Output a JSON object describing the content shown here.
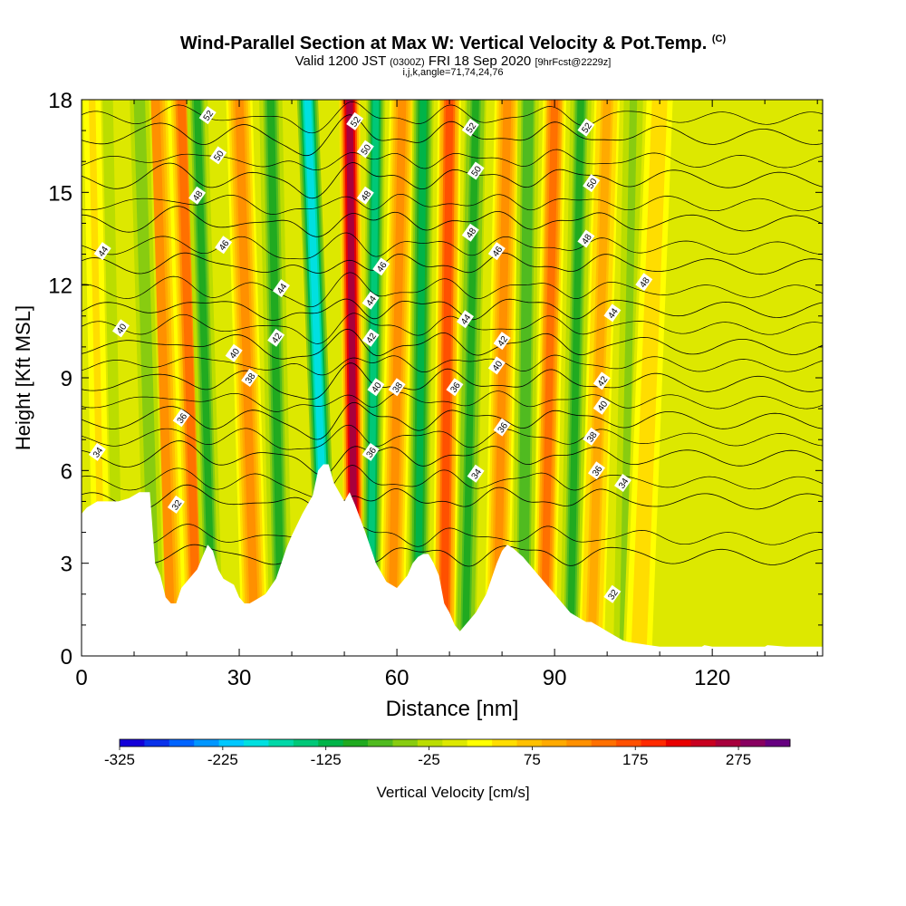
{
  "title": {
    "line1": "Wind-Parallel Section at Max W: Vertical Velocity & Pot.Temp.",
    "line1_mark": "(C)",
    "line2_valid": "Valid 1200 JST",
    "line2_utc": "(0300Z)",
    "line2_date": "FRI 18 Sep 2020",
    "line2_fcst": "[9hrFcst@2229z]",
    "line3": "i,j,k,angle=71,74,24,76"
  },
  "chart_data": {
    "type": "heatmap",
    "xlabel": "Distance [nm]",
    "ylabel": "Height [Kft MSL]",
    "xlim": [
      0,
      141
    ],
    "ylim": [
      0,
      18
    ],
    "x_ticks": [
      0,
      30,
      60,
      90,
      120
    ],
    "y_ticks": [
      0,
      3,
      6,
      9,
      12,
      15,
      18
    ],
    "colorbar": {
      "label": "Vertical Velocity [cm/s]",
      "range": [
        -325,
        325
      ],
      "tick_values": [
        -325,
        -225,
        -125,
        -25,
        75,
        175,
        275
      ],
      "tick_labels": [
        "-325",
        "-225",
        "-125",
        "-25",
        "75",
        "175",
        "275"
      ],
      "colors": [
        "#1400d8",
        "#0a32ea",
        "#0064ff",
        "#0096ff",
        "#00c8ff",
        "#00e0e0",
        "#00d8a8",
        "#00c878",
        "#00b448",
        "#20aa20",
        "#50bb20",
        "#88cc10",
        "#bbdd00",
        "#dde800",
        "#ffff00",
        "#ffdd00",
        "#ffc000",
        "#ffaa00",
        "#ff9000",
        "#ff7000",
        "#ff5000",
        "#ff2a00",
        "#e80000",
        "#c80020",
        "#a8003c",
        "#880060",
        "#660080"
      ]
    },
    "terrain": {
      "x": [
        0,
        1,
        3,
        4,
        7,
        9,
        11,
        13,
        14,
        15,
        16,
        17,
        18,
        19,
        20,
        21,
        22,
        23,
        24,
        25,
        26,
        27,
        28,
        29,
        30,
        31,
        32,
        33,
        35,
        37,
        38,
        39,
        40,
        42,
        44,
        45,
        46,
        47,
        48,
        49,
        50,
        51,
        52,
        54,
        56,
        58,
        60,
        61,
        62,
        63,
        64,
        65,
        66,
        67,
        68,
        69,
        70,
        71,
        72,
        73,
        75,
        77,
        78,
        79,
        80,
        81,
        82,
        84,
        86,
        88,
        90,
        91,
        92,
        93,
        94,
        95,
        96,
        97,
        98,
        99,
        100,
        101,
        102,
        103,
        104,
        106,
        108,
        110,
        112,
        114,
        116,
        118,
        118.5,
        120,
        125,
        128,
        130,
        130.5,
        134,
        137,
        139,
        141
      ],
      "y": [
        4.6,
        4.8,
        5.0,
        5.0,
        5.0,
        5.1,
        5.3,
        5.3,
        3.0,
        2.6,
        1.9,
        1.7,
        1.7,
        2.2,
        2.4,
        2.6,
        2.8,
        3.2,
        3.6,
        3.4,
        2.8,
        2.5,
        2.4,
        2.3,
        1.9,
        1.7,
        1.7,
        1.8,
        2.0,
        2.5,
        3.0,
        3.5,
        3.9,
        4.6,
        5.2,
        6.0,
        6.2,
        6.2,
        5.6,
        5.3,
        5.0,
        5.3,
        4.9,
        4.0,
        3.0,
        2.4,
        2.2,
        2.4,
        2.6,
        3.0,
        3.2,
        3.3,
        3.3,
        3.0,
        2.6,
        1.7,
        1.4,
        1.0,
        0.8,
        1.0,
        1.4,
        2.0,
        2.5,
        3.0,
        3.4,
        3.6,
        3.5,
        3.2,
        2.8,
        2.4,
        2.0,
        1.8,
        1.6,
        1.4,
        1.3,
        1.2,
        1.1,
        1.1,
        1.0,
        0.9,
        0.8,
        0.7,
        0.6,
        0.5,
        0.45,
        0.4,
        0.35,
        0.3,
        0.3,
        0.3,
        0.3,
        0.3,
        0.35,
        0.3,
        0.3,
        0.3,
        0.3,
        0.35,
        0.3,
        0.3,
        0.3,
        0.3
      ]
    },
    "wave_bands": [
      {
        "w": 110,
        "x_base": 17,
        "x_top": 14,
        "half_width": 2.8
      },
      {
        "w": 140,
        "x_base": 22,
        "x_top": 19,
        "half_width": 2.4
      },
      {
        "w": -60,
        "x_base": 14,
        "x_top": 11,
        "half_width": 2.2
      },
      {
        "w": -85,
        "x_base": 25,
        "x_top": 22,
        "half_width": 2.0
      },
      {
        "w": 110,
        "x_base": 33,
        "x_top": 30,
        "half_width": 2.5
      },
      {
        "w": -90,
        "x_base": 38,
        "x_top": 36,
        "half_width": 2.2
      },
      {
        "w": -200,
        "x_base": 47,
        "x_top": 43,
        "half_width": 2.0
      },
      {
        "w": 270,
        "x_base": 52,
        "x_top": 51,
        "half_width": 2.0
      },
      {
        "w": -140,
        "x_base": 55,
        "x_top": 56,
        "half_width": 1.8
      },
      {
        "w": 130,
        "x_base": 59,
        "x_top": 61,
        "half_width": 2.4
      },
      {
        "w": -110,
        "x_base": 64,
        "x_top": 65,
        "half_width": 2.0
      },
      {
        "w": 170,
        "x_base": 69,
        "x_top": 70,
        "half_width": 2.2
      },
      {
        "w": -100,
        "x_base": 73,
        "x_top": 75,
        "half_width": 2.0
      },
      {
        "w": 130,
        "x_base": 79,
        "x_top": 81,
        "half_width": 2.4
      },
      {
        "w": -80,
        "x_base": 84,
        "x_top": 85,
        "half_width": 2.0
      },
      {
        "w": 150,
        "x_base": 88,
        "x_top": 90,
        "half_width": 2.2
      },
      {
        "w": -90,
        "x_base": 93,
        "x_top": 95,
        "half_width": 2.0
      },
      {
        "w": 100,
        "x_base": 97,
        "x_top": 100,
        "half_width": 2.4
      },
      {
        "w": -40,
        "x_base": 103,
        "x_top": 105,
        "half_width": 2.2
      },
      {
        "w": 60,
        "x_base": 106,
        "x_top": 110,
        "half_width": 3.0
      },
      {
        "w": -30,
        "x_base": 6,
        "x_top": 4,
        "half_width": 3.0
      },
      {
        "w": 45,
        "x_base": 4,
        "x_top": 2,
        "half_width": 2.0
      }
    ],
    "theta_contours": {
      "levels": [
        32,
        34,
        36,
        38,
        40,
        42,
        44,
        46,
        48,
        50,
        52
      ],
      "base_heights": [
        3.2,
        5.0,
        6.4,
        7.6,
        8.8,
        10.0,
        11.2,
        12.6,
        14.0,
        15.4,
        16.8
      ],
      "labels": [
        {
          "text": "52",
          "x": 24,
          "y": 17.5
        },
        {
          "text": "50",
          "x": 26,
          "y": 16.2
        },
        {
          "text": "48",
          "x": 22,
          "y": 14.9
        },
        {
          "text": "46",
          "x": 27,
          "y": 13.3
        },
        {
          "text": "44",
          "x": 4,
          "y": 13.1
        },
        {
          "text": "44",
          "x": 38,
          "y": 11.9
        },
        {
          "text": "40",
          "x": 7.5,
          "y": 10.6
        },
        {
          "text": "42",
          "x": 37,
          "y": 10.3
        },
        {
          "text": "40",
          "x": 29,
          "y": 9.8
        },
        {
          "text": "38",
          "x": 32,
          "y": 9.0
        },
        {
          "text": "36",
          "x": 19,
          "y": 7.7
        },
        {
          "text": "34",
          "x": 3,
          "y": 6.6
        },
        {
          "text": "32",
          "x": 18,
          "y": 4.9
        },
        {
          "text": "52",
          "x": 52,
          "y": 17.3
        },
        {
          "text": "50",
          "x": 54,
          "y": 16.4
        },
        {
          "text": "48",
          "x": 54,
          "y": 14.9
        },
        {
          "text": "46",
          "x": 57,
          "y": 12.6
        },
        {
          "text": "44",
          "x": 55,
          "y": 11.5
        },
        {
          "text": "42",
          "x": 55,
          "y": 10.3
        },
        {
          "text": "40",
          "x": 56,
          "y": 8.7
        },
        {
          "text": "38",
          "x": 60,
          "y": 8.7
        },
        {
          "text": "36",
          "x": 55,
          "y": 6.6
        },
        {
          "text": "52",
          "x": 74,
          "y": 17.1
        },
        {
          "text": "50",
          "x": 75,
          "y": 15.7
        },
        {
          "text": "48",
          "x": 74,
          "y": 13.7
        },
        {
          "text": "46",
          "x": 79,
          "y": 13.1
        },
        {
          "text": "44",
          "x": 73,
          "y": 10.9
        },
        {
          "text": "42",
          "x": 80,
          "y": 10.2
        },
        {
          "text": "40",
          "x": 79,
          "y": 9.4
        },
        {
          "text": "36",
          "x": 71,
          "y": 8.7
        },
        {
          "text": "36",
          "x": 80,
          "y": 7.4
        },
        {
          "text": "34",
          "x": 75,
          "y": 5.9
        },
        {
          "text": "52",
          "x": 96,
          "y": 17.1
        },
        {
          "text": "50",
          "x": 97,
          "y": 15.3
        },
        {
          "text": "48",
          "x": 96,
          "y": 13.5
        },
        {
          "text": "48",
          "x": 107,
          "y": 12.1
        },
        {
          "text": "44",
          "x": 101,
          "y": 11.1
        },
        {
          "text": "42",
          "x": 99,
          "y": 8.9
        },
        {
          "text": "40",
          "x": 99,
          "y": 8.1
        },
        {
          "text": "38",
          "x": 97,
          "y": 7.1
        },
        {
          "text": "36",
          "x": 98,
          "y": 6.0
        },
        {
          "text": "34",
          "x": 103,
          "y": 5.6
        },
        {
          "text": "32",
          "x": 101,
          "y": 2.0
        }
      ]
    },
    "grid": false,
    "legend": "bottom"
  }
}
